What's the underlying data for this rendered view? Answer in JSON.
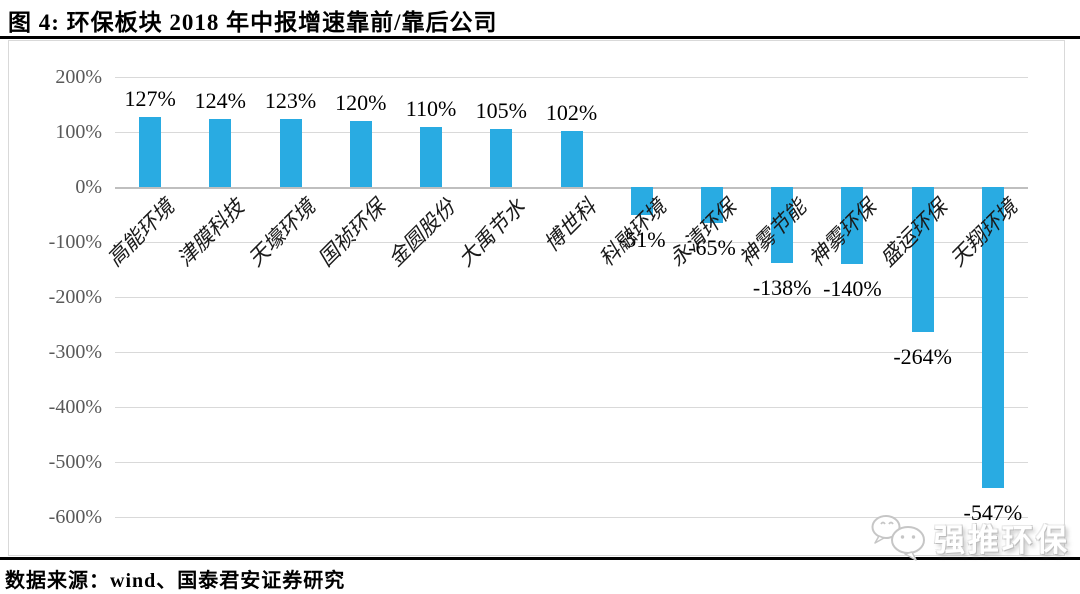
{
  "title": "图 4: 环保板块 2018 年中报增速靠前/靠后公司",
  "source": "数据来源：wind、国泰君安证券研究",
  "watermark": {
    "label": "强推环保",
    "icon": "wechat-chat-bubbles"
  },
  "colors": {
    "bar": "#29ABE2",
    "gridline": "#d9d9d9",
    "zero_line": "#bfbfbf",
    "axis_text": "#595959",
    "label_text": "#000000",
    "rule": "#000000"
  },
  "chart_data": {
    "type": "bar",
    "title": "环保板块2018年中报增速靠前/靠后公司",
    "categories": [
      "高能环境",
      "津膜科技",
      "天壕环境",
      "国祯环保",
      "金圆股份",
      "大禹节水",
      "博世科",
      "科融环境",
      "永清环保",
      "神雾节能",
      "神雾环保",
      "盛运环保",
      "天翔环境"
    ],
    "values": [
      127,
      124,
      123,
      120,
      110,
      105,
      102,
      -51,
      -65,
      -138,
      -140,
      -264,
      -547
    ],
    "value_labels": [
      "127%",
      "124%",
      "123%",
      "120%",
      "110%",
      "105%",
      "102%",
      "-51%",
      "-65%",
      "-138%",
      "-140%",
      "-264%",
      "-547%"
    ],
    "xlabel": "",
    "ylabel": "",
    "y_ticks": [
      {
        "label": "200%",
        "value": 200
      },
      {
        "label": "100%",
        "value": 100
      },
      {
        "label": "0%",
        "value": 0
      },
      {
        "label": "-100%",
        "value": -100
      },
      {
        "label": "-200%",
        "value": -200
      },
      {
        "label": "-300%",
        "value": -300
      },
      {
        "label": "-400%",
        "value": -400
      },
      {
        "label": "-500%",
        "value": -500
      },
      {
        "label": "-600%",
        "value": -600
      }
    ],
    "ylim": [
      -600,
      200
    ],
    "grid": true,
    "legend": false,
    "bar_color": "#29ABE2"
  }
}
